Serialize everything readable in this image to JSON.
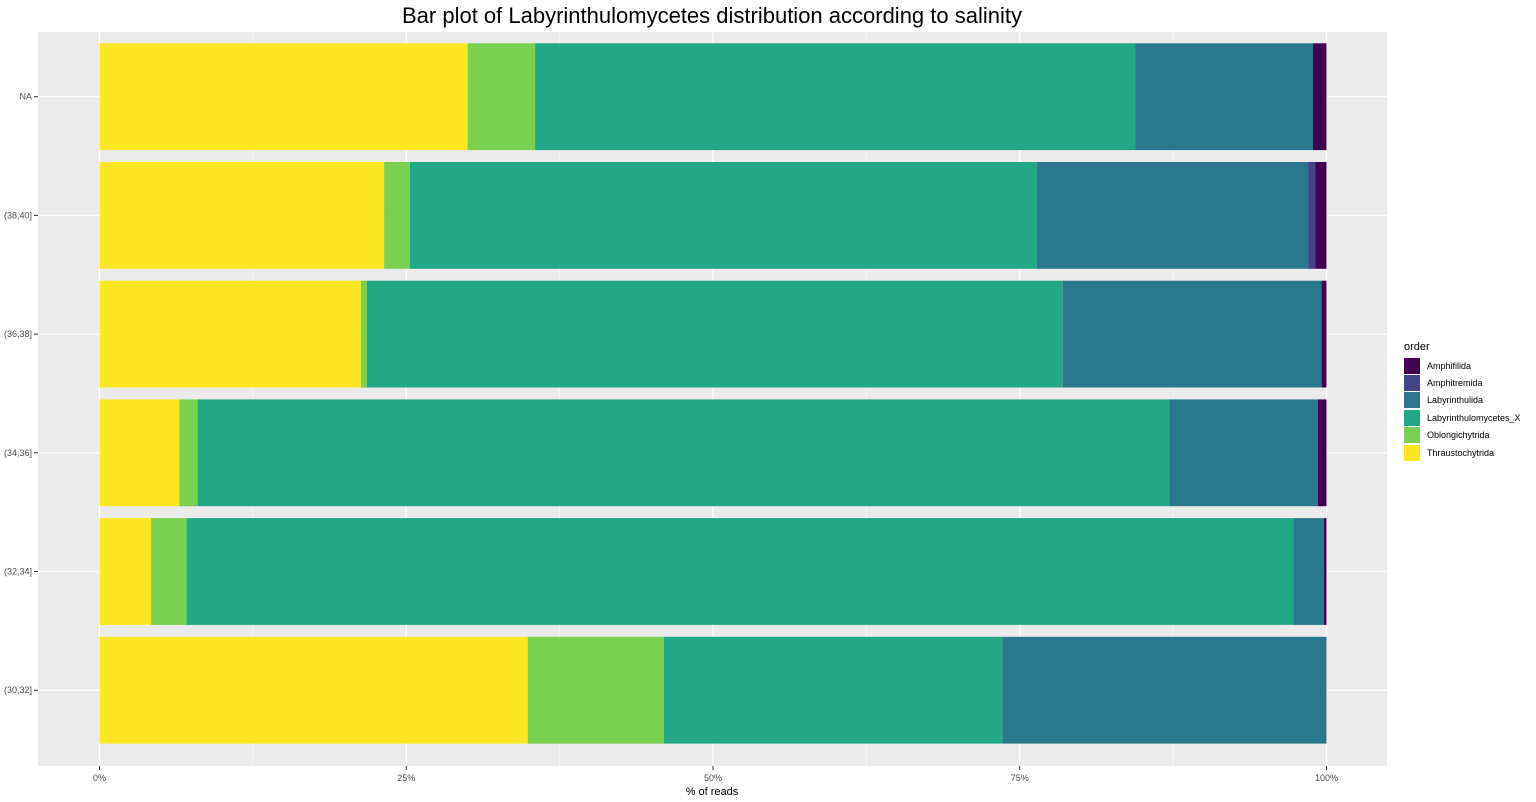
{
  "chart_data": {
    "type": "bar",
    "orientation": "horizontal",
    "stacked": true,
    "title": "Bar plot of Labyrinthulomycetes distribution according to salinity",
    "xlabel": "% of reads",
    "ylabel": "",
    "xlim": [
      0,
      1
    ],
    "x_ticks": [
      0,
      0.25,
      0.5,
      0.75,
      1
    ],
    "x_tick_labels": [
      "0%",
      "25%",
      "50%",
      "75%",
      "100%"
    ],
    "grid": true,
    "legend_position": "right",
    "legend_title": "order",
    "categories": [
      "NA",
      "(38,40]",
      "(36,38]",
      "(34,36]",
      "(32,34]",
      "(30,32]"
    ],
    "series": [
      {
        "name": "Thraustochytrida",
        "color": "#FDE725",
        "values": [
          0.3,
          0.232,
          0.213,
          0.065,
          0.042,
          0.349
        ]
      },
      {
        "name": "Oblongichytrida",
        "color": "#7AD151",
        "values": [
          0.055,
          0.021,
          0.005,
          0.015,
          0.029,
          0.111
        ]
      },
      {
        "name": "Labyrinthulomycetes_X",
        "color": "#22A884",
        "values": [
          0.489,
          0.511,
          0.567,
          0.792,
          0.902,
          0.276
        ]
      },
      {
        "name": "Labyrinthulida",
        "color": "#2A788E",
        "values": [
          0.145,
          0.221,
          0.211,
          0.121,
          0.025,
          0.264
        ]
      },
      {
        "name": "Amphitremida",
        "color": "#414487",
        "values": [
          0,
          0.006,
          0,
          0,
          0,
          0
        ]
      },
      {
        "name": "Amphifilida",
        "color": "#440154",
        "values": [
          0.011,
          0.009,
          0.004,
          0.007,
          0.002,
          0
        ]
      }
    ],
    "legend_order": [
      "Amphifilida",
      "Amphitremida",
      "Labyrinthulida",
      "Labyrinthulomycetes_X",
      "Oblongichytrida",
      "Thraustochytrida"
    ]
  }
}
